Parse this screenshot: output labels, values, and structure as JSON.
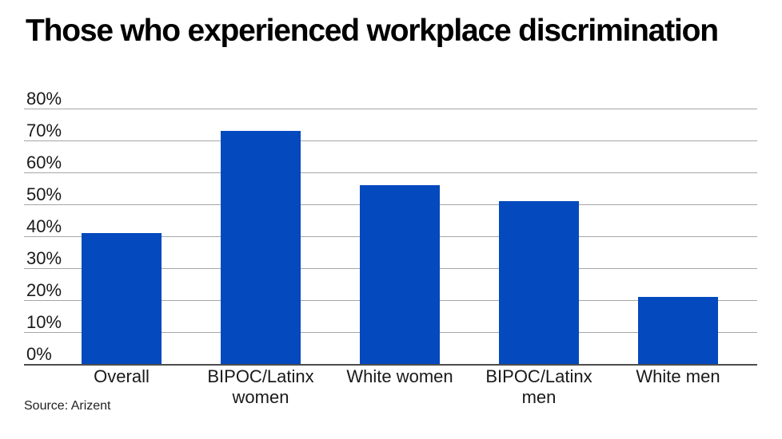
{
  "page": {
    "title": "Those who experienced workplace discrimination",
    "source": "Source: Arizent"
  },
  "chart_data": {
    "type": "bar",
    "title": "Those who experienced workplace discrimination",
    "categories": [
      "Overall",
      "BIPOC/Latinx women",
      "White women",
      "BIPOC/Latinx men",
      "White men"
    ],
    "values": [
      41,
      73,
      56,
      51,
      21
    ],
    "unit": "%",
    "xlabel": "",
    "ylabel": "",
    "ylim": [
      0,
      80
    ],
    "ytick_step": 10,
    "ytick_labels": [
      "0%",
      "10%",
      "20%",
      "30%",
      "40%",
      "50%",
      "60%",
      "70%",
      "80%"
    ],
    "grid": true,
    "legend": false,
    "bar_color": "#0449BE",
    "gridline_color": "#a6a6a6",
    "axis_color": "#4d4d4d",
    "source": "Source: Arizent"
  }
}
